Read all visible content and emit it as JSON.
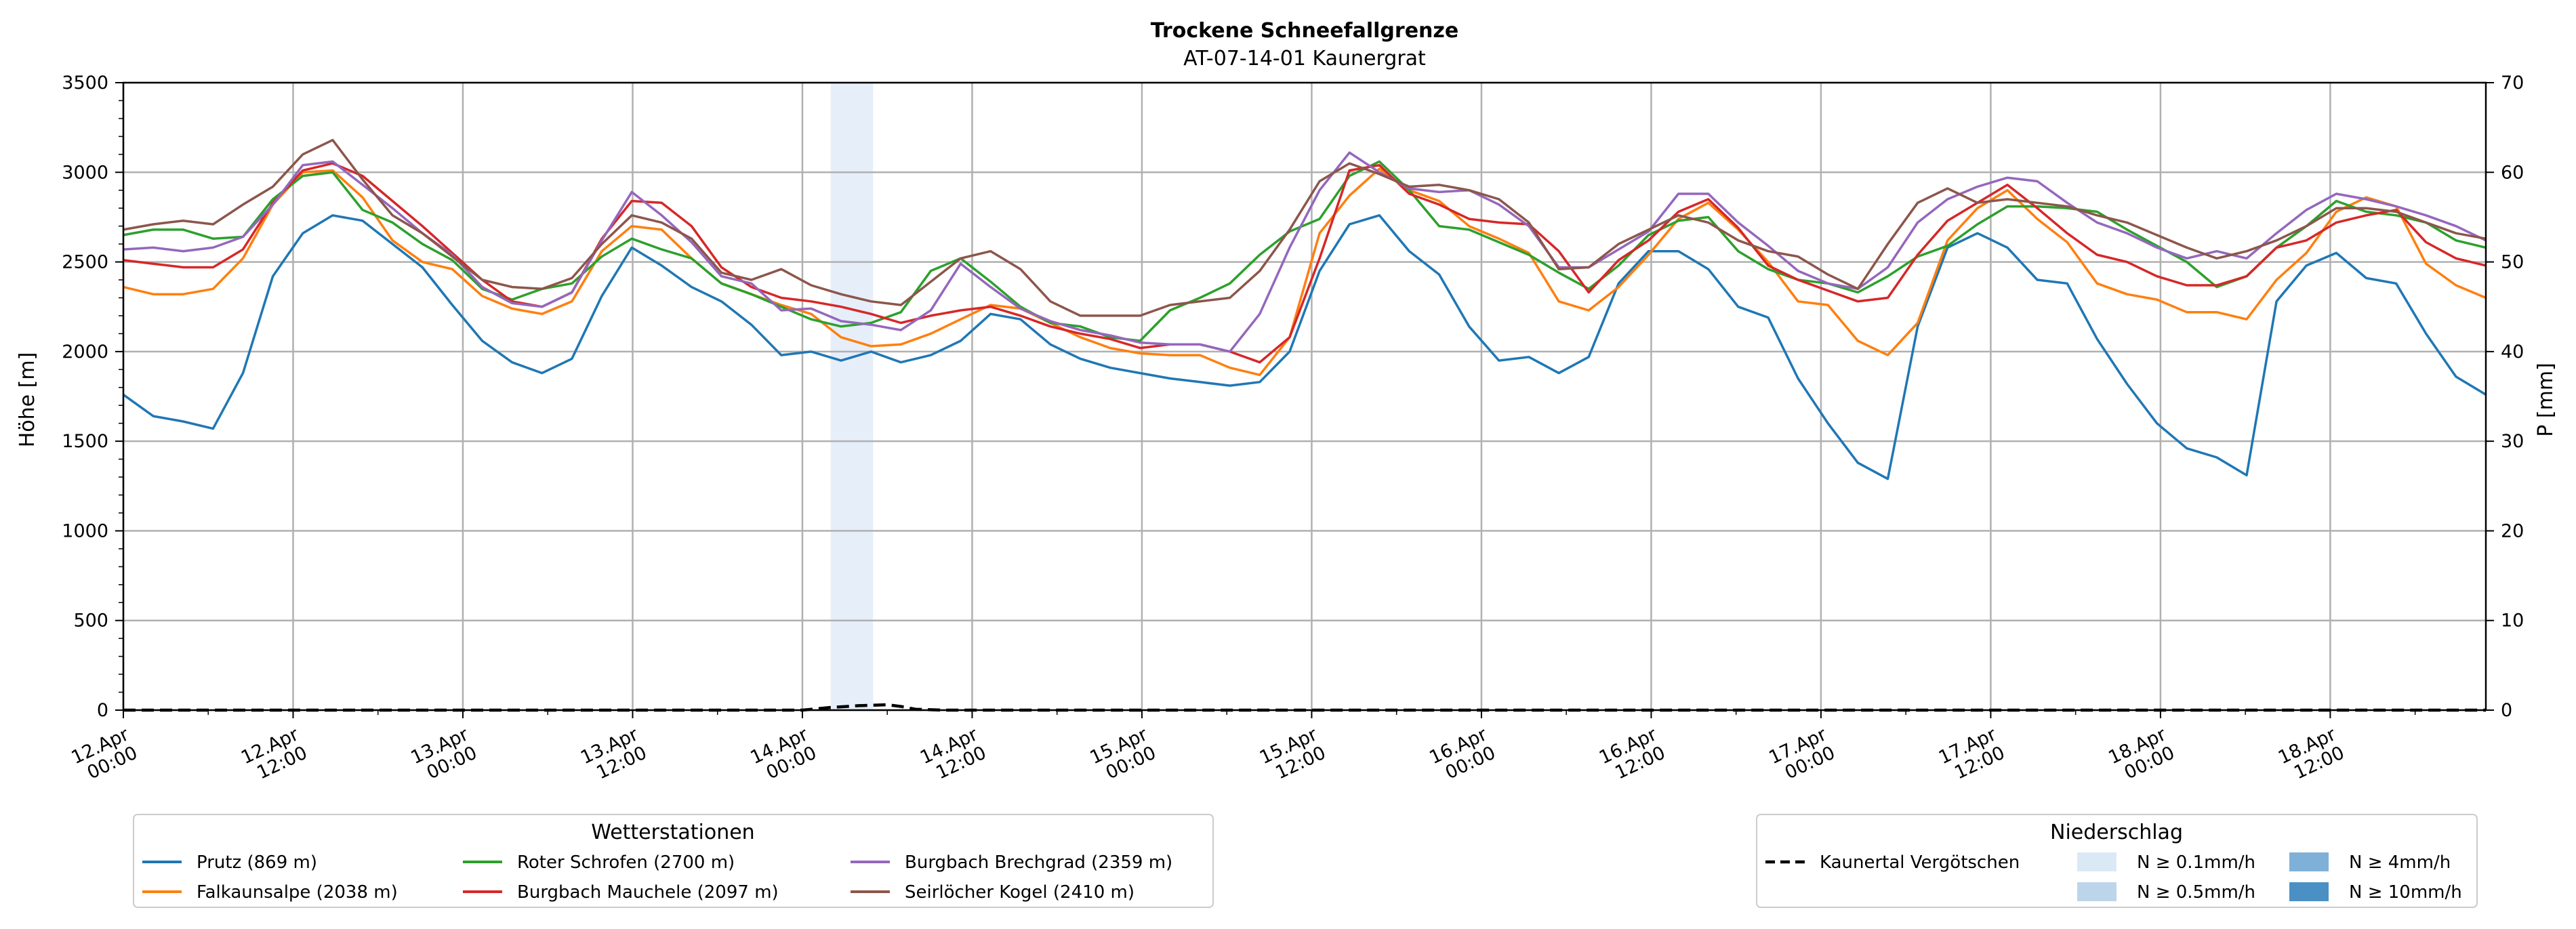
{
  "chart_data": {
    "type": "line",
    "title": "Trockene Schneefallgrenze",
    "subtitle": "AT-07-14-01 Kaunergrat",
    "ylabel": "Höhe [m]",
    "ylabel_right": "P [mm]",
    "ylim": [
      0,
      3500
    ],
    "ylim_right": [
      0,
      70
    ],
    "yticks": [
      "0",
      "500",
      "1000",
      "1500",
      "2000",
      "2500",
      "3000",
      "3500"
    ],
    "yticks_right": [
      "0",
      "10",
      "20",
      "30",
      "40",
      "50",
      "60",
      "70"
    ],
    "xlim_hours": [
      0,
      167
    ],
    "x_step_hours": 3,
    "xticks": [
      {
        "h": 0,
        "line1": "12.Apr",
        "line2": "00:00"
      },
      {
        "h": 12,
        "line1": "12.Apr",
        "line2": "12:00"
      },
      {
        "h": 24,
        "line1": "13.Apr",
        "line2": "00:00"
      },
      {
        "h": 36,
        "line1": "13.Apr",
        "line2": "12:00"
      },
      {
        "h": 48,
        "line1": "14.Apr",
        "line2": "00:00"
      },
      {
        "h": 60,
        "line1": "14.Apr",
        "line2": "12:00"
      },
      {
        "h": 72,
        "line1": "15.Apr",
        "line2": "00:00"
      },
      {
        "h": 84,
        "line1": "15.Apr",
        "line2": "12:00"
      },
      {
        "h": 96,
        "line1": "16.Apr",
        "line2": "00:00"
      },
      {
        "h": 108,
        "line1": "16.Apr",
        "line2": "12:00"
      },
      {
        "h": 120,
        "line1": "17.Apr",
        "line2": "00:00"
      },
      {
        "h": 132,
        "line1": "17.Apr",
        "line2": "12:00"
      },
      {
        "h": 144,
        "line1": "18.Apr",
        "line2": "00:00"
      },
      {
        "h": 156,
        "line1": "18.Apr",
        "line2": "12:00"
      }
    ],
    "shaded_intervals": [
      {
        "from_h": 50,
        "to_h": 53,
        "color": "#e6eef9"
      }
    ],
    "series": [
      {
        "name": "Prutz (869 m)",
        "color": "#1f77b4",
        "values": [
          1760,
          1640,
          1610,
          1570,
          1880,
          2420,
          2660,
          2760,
          2730,
          2600,
          2470,
          2260,
          2060,
          1940,
          1880,
          1960,
          2310,
          2580,
          2480,
          2360,
          2280,
          2150,
          1980,
          2000,
          1950,
          2000,
          1940,
          1980,
          2060,
          2210,
          2180,
          2040,
          1960,
          1910,
          1880,
          1850,
          1830,
          1810,
          1830,
          2000,
          2450,
          2710,
          2760,
          2560,
          2430,
          2140,
          1950,
          1970,
          1880,
          1970,
          2380,
          2560,
          2560,
          2460,
          2250,
          2190,
          1850,
          1600,
          1380,
          1290,
          2140,
          2580,
          2660,
          2580,
          2400,
          2380,
          2070,
          1820,
          1600,
          1460,
          1410,
          1310,
          2280,
          2480,
          2550,
          2410,
          2380,
          2100,
          1860,
          1760
        ]
      },
      {
        "name": "Falkaunsalpe (2038 m)",
        "color": "#ff7f0e",
        "values": [
          2360,
          2320,
          2320,
          2350,
          2520,
          2820,
          3000,
          3010,
          2860,
          2620,
          2500,
          2460,
          2310,
          2240,
          2210,
          2280,
          2560,
          2700,
          2680,
          2520,
          2380,
          2320,
          2260,
          2210,
          2080,
          2030,
          2040,
          2100,
          2180,
          2260,
          2240,
          2160,
          2080,
          2020,
          1990,
          1980,
          1980,
          1910,
          1870,
          2080,
          2660,
          2870,
          3020,
          2900,
          2840,
          2700,
          2630,
          2550,
          2280,
          2230,
          2360,
          2540,
          2740,
          2830,
          2680,
          2500,
          2280,
          2260,
          2060,
          1980,
          2160,
          2620,
          2800,
          2900,
          2740,
          2610,
          2380,
          2320,
          2290,
          2220,
          2220,
          2180,
          2400,
          2550,
          2780,
          2860,
          2810,
          2490,
          2370,
          2300
        ]
      },
      {
        "name": "Roter Schrofen (2700 m)",
        "color": "#2ca02c",
        "values": [
          2650,
          2680,
          2680,
          2630,
          2640,
          2850,
          2980,
          3000,
          2790,
          2720,
          2600,
          2510,
          2350,
          2290,
          2350,
          2380,
          2530,
          2630,
          2570,
          2520,
          2380,
          2320,
          2250,
          2180,
          2140,
          2160,
          2220,
          2450,
          2520,
          2390,
          2250,
          2160,
          2140,
          2080,
          2060,
          2230,
          2300,
          2380,
          2540,
          2670,
          2740,
          2980,
          3060,
          2900,
          2700,
          2680,
          2610,
          2540,
          2440,
          2350,
          2480,
          2650,
          2730,
          2750,
          2560,
          2460,
          2400,
          2380,
          2330,
          2420,
          2530,
          2590,
          2710,
          2810,
          2810,
          2800,
          2780,
          2680,
          2590,
          2500,
          2360,
          2420,
          2580,
          2700,
          2840,
          2780,
          2760,
          2720,
          2620,
          2580
        ]
      },
      {
        "name": "Burgbach Mauchele (2097 m)",
        "color": "#d62728",
        "values": [
          2510,
          2490,
          2470,
          2470,
          2570,
          2830,
          3010,
          3050,
          2980,
          2840,
          2700,
          2550,
          2400,
          2280,
          2250,
          2330,
          2630,
          2840,
          2830,
          2700,
          2470,
          2360,
          2300,
          2280,
          2250,
          2210,
          2160,
          2200,
          2230,
          2250,
          2200,
          2140,
          2100,
          2070,
          2020,
          2040,
          2040,
          2000,
          1940,
          2080,
          2520,
          3010,
          3040,
          2880,
          2820,
          2740,
          2720,
          2710,
          2560,
          2330,
          2510,
          2620,
          2780,
          2850,
          2690,
          2480,
          2400,
          2340,
          2280,
          2300,
          2540,
          2730,
          2830,
          2930,
          2800,
          2660,
          2540,
          2500,
          2420,
          2370,
          2370,
          2420,
          2580,
          2620,
          2720,
          2760,
          2790,
          2610,
          2520,
          2480
        ]
      },
      {
        "name": "Burgbach Brechgrad (2359 m)",
        "color": "#9467bd",
        "values": [
          2570,
          2580,
          2560,
          2580,
          2640,
          2820,
          3040,
          3060,
          2930,
          2800,
          2660,
          2540,
          2360,
          2270,
          2250,
          2330,
          2620,
          2890,
          2760,
          2610,
          2420,
          2380,
          2230,
          2240,
          2170,
          2150,
          2120,
          2230,
          2490,
          2360,
          2240,
          2170,
          2120,
          2090,
          2050,
          2040,
          2040,
          2000,
          2210,
          2580,
          2900,
          3110,
          3000,
          2910,
          2890,
          2900,
          2820,
          2700,
          2470,
          2470,
          2570,
          2670,
          2880,
          2880,
          2720,
          2590,
          2450,
          2380,
          2350,
          2470,
          2720,
          2850,
          2920,
          2970,
          2950,
          2830,
          2720,
          2660,
          2580,
          2520,
          2560,
          2520,
          2660,
          2790,
          2880,
          2850,
          2810,
          2760,
          2700,
          2620
        ]
      },
      {
        "name": "Seirlöcher Kogel (2410 m)",
        "color": "#8c564b",
        "values": [
          2680,
          2710,
          2730,
          2710,
          2820,
          2920,
          3100,
          3180,
          2960,
          2760,
          2660,
          2530,
          2400,
          2360,
          2350,
          2410,
          2600,
          2760,
          2720,
          2630,
          2440,
          2400,
          2460,
          2370,
          2320,
          2280,
          2260,
          2390,
          2520,
          2560,
          2460,
          2280,
          2200,
          2200,
          2200,
          2260,
          2280,
          2300,
          2450,
          2680,
          2950,
          3050,
          2990,
          2920,
          2930,
          2900,
          2850,
          2720,
          2460,
          2470,
          2600,
          2680,
          2760,
          2720,
          2620,
          2560,
          2530,
          2430,
          2350,
          2600,
          2830,
          2910,
          2830,
          2850,
          2830,
          2810,
          2760,
          2720,
          2650,
          2580,
          2520,
          2560,
          2620,
          2700,
          2800,
          2800,
          2780,
          2720,
          2660,
          2630
        ]
      }
    ],
    "precip_series": {
      "name": "Kaunertal Vergötschen",
      "color": "#000000",
      "points_hours": [
        0,
        48,
        50,
        52,
        54,
        55,
        56,
        58,
        60,
        72,
        84,
        96,
        108,
        120,
        132,
        144,
        156,
        167
      ],
      "values_mm": [
        0,
        0,
        0.3,
        0.5,
        0.6,
        0.4,
        0.1,
        0,
        0,
        0,
        0,
        0,
        0,
        0,
        0,
        0,
        0,
        0
      ]
    },
    "legend_stations": {
      "title": "Wetterstationen",
      "items": [
        "Prutz (869 m)",
        "Falkaunsalpe (2038 m)",
        "Roter Schrofen (2700 m)",
        "Burgbach Mauchele (2097 m)",
        "Burgbach Brechgrad (2359 m)",
        "Seirlöcher Kogel (2410 m)"
      ]
    },
    "legend_precip": {
      "title": "Niederschlag",
      "line_label": "Kaunertal Vergötschen",
      "items": [
        {
          "label": "N ≥ 0.1mm/h",
          "color": "#dbe9f6"
        },
        {
          "label": "N ≥ 0.5mm/h",
          "color": "#bcd5ea"
        },
        {
          "label": "N ≥ 4mm/h",
          "color": "#7fb1d8"
        },
        {
          "label": "N ≥ 10mm/h",
          "color": "#4a90c4"
        }
      ]
    }
  }
}
